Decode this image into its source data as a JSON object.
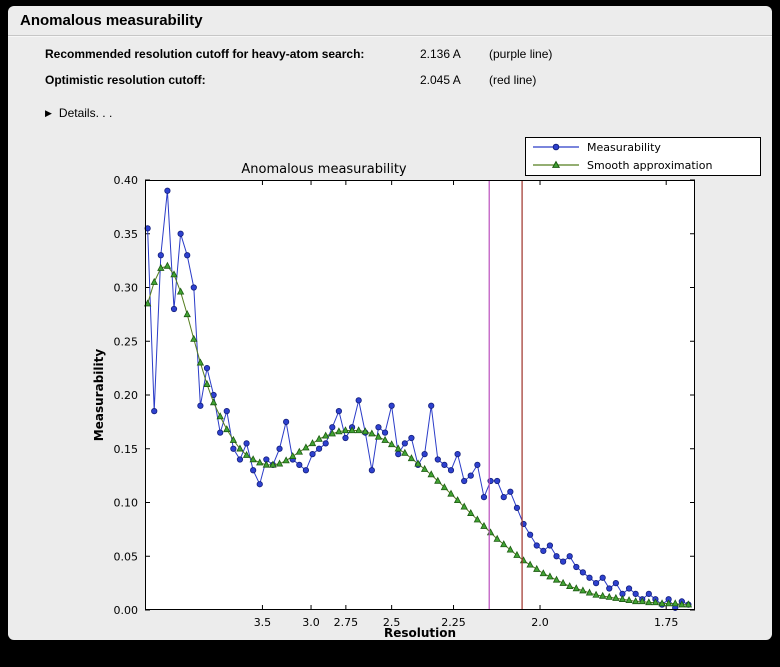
{
  "window": {
    "title": "Anomalous measurability"
  },
  "icons": {
    "details_disclosure": "▶"
  },
  "info": {
    "rows": [
      {
        "label": "Recommended resolution cutoff for heavy-atom search:",
        "value": "2.136 A",
        "note": "(purple line)"
      },
      {
        "label": "Optimistic resolution cutoff:",
        "value": "2.045 A",
        "note": "(red line)"
      }
    ],
    "details_label": "Details. . ."
  },
  "chart_data": {
    "type": "line",
    "title": "Anomalous measurability",
    "xlabel": "Resolution",
    "ylabel": "Measurability",
    "x_axis": {
      "transform": "1/d^2",
      "smin": 0.0104,
      "smax": 0.344,
      "xlim_d": [
        9.8,
        1.7
      ],
      "tick_d_values": [
        3.5,
        3.0,
        2.75,
        2.5,
        2.25,
        2.0,
        1.75
      ],
      "tick_labels": [
        "3.5",
        "3.0",
        "2.75",
        "2.5",
        "2.25",
        "2.0",
        "1.75"
      ]
    },
    "y_axis": {
      "min": 0.0,
      "max": 0.4,
      "ticks": [
        0.0,
        0.05,
        0.1,
        0.15,
        0.2,
        0.25,
        0.3,
        0.35,
        0.4
      ],
      "tick_labels": [
        "0.00",
        "0.05",
        "0.10",
        "0.15",
        "0.20",
        "0.25",
        "0.30",
        "0.35",
        "0.40"
      ]
    },
    "grid": false,
    "legend": {
      "position": "top-right",
      "entries": [
        {
          "label": "Measurability"
        },
        {
          "label": "Smooth approximation"
        }
      ]
    },
    "cutoff_lines": [
      {
        "name": "recommended-cutoff-purple",
        "d": 2.136,
        "color": "#bb4fbd"
      },
      {
        "name": "optimistic-cutoff-red",
        "d": 2.045,
        "color": "#9e3229"
      }
    ],
    "x_values_1_over_d2": [
      0.012,
      0.016,
      0.02,
      0.024,
      0.028,
      0.032,
      0.036,
      0.04,
      0.044,
      0.048,
      0.052,
      0.056,
      0.06,
      0.064,
      0.068,
      0.072,
      0.076,
      0.08,
      0.084,
      0.088,
      0.092,
      0.096,
      0.1,
      0.104,
      0.108,
      0.112,
      0.116,
      0.12,
      0.124,
      0.128,
      0.132,
      0.136,
      0.14,
      0.144,
      0.148,
      0.152,
      0.156,
      0.16,
      0.164,
      0.168,
      0.172,
      0.176,
      0.18,
      0.184,
      0.188,
      0.192,
      0.196,
      0.2,
      0.204,
      0.208,
      0.212,
      0.216,
      0.22,
      0.224,
      0.228,
      0.232,
      0.236,
      0.24,
      0.244,
      0.248,
      0.252,
      0.256,
      0.26,
      0.264,
      0.268,
      0.272,
      0.276,
      0.28,
      0.284,
      0.288,
      0.292,
      0.296,
      0.3,
      0.304,
      0.308,
      0.312,
      0.316,
      0.32,
      0.324,
      0.328,
      0.332,
      0.336,
      0.34
    ],
    "series": [
      {
        "name": "Measurability",
        "marker": "circle",
        "line_color": "#2b3cc8",
        "marker_fill": "#2e41cf",
        "marker_edge": "#14207e",
        "values": [
          0.355,
          0.185,
          0.33,
          0.39,
          0.28,
          0.35,
          0.33,
          0.3,
          0.19,
          0.225,
          0.2,
          0.165,
          0.185,
          0.15,
          0.14,
          0.155,
          0.13,
          0.117,
          0.14,
          0.135,
          0.15,
          0.175,
          0.14,
          0.135,
          0.13,
          0.145,
          0.15,
          0.155,
          0.17,
          0.185,
          0.16,
          0.17,
          0.195,
          0.165,
          0.13,
          0.17,
          0.165,
          0.19,
          0.145,
          0.155,
          0.16,
          0.135,
          0.145,
          0.19,
          0.14,
          0.135,
          0.13,
          0.145,
          0.12,
          0.125,
          0.135,
          0.105,
          0.12,
          0.12,
          0.105,
          0.11,
          0.095,
          0.08,
          0.07,
          0.06,
          0.055,
          0.06,
          0.05,
          0.045,
          0.05,
          0.04,
          0.035,
          0.03,
          0.025,
          0.03,
          0.02,
          0.025,
          0.015,
          0.02,
          0.015,
          0.01,
          0.015,
          0.01,
          0.005,
          0.01,
          0.002,
          0.008,
          0.005
        ]
      },
      {
        "name": "Smooth approximation",
        "marker": "triangle",
        "line_color": "#557d1f",
        "marker_fill": "#41a333",
        "marker_edge": "#1c5a12",
        "values": [
          0.285,
          0.305,
          0.318,
          0.32,
          0.312,
          0.296,
          0.275,
          0.252,
          0.23,
          0.21,
          0.193,
          0.18,
          0.168,
          0.158,
          0.15,
          0.144,
          0.14,
          0.137,
          0.135,
          0.135,
          0.136,
          0.139,
          0.143,
          0.147,
          0.151,
          0.155,
          0.159,
          0.162,
          0.164,
          0.166,
          0.167,
          0.167,
          0.167,
          0.166,
          0.164,
          0.161,
          0.158,
          0.154,
          0.15,
          0.146,
          0.141,
          0.136,
          0.131,
          0.126,
          0.12,
          0.114,
          0.108,
          0.102,
          0.096,
          0.09,
          0.084,
          0.078,
          0.072,
          0.066,
          0.061,
          0.056,
          0.051,
          0.046,
          0.042,
          0.038,
          0.034,
          0.031,
          0.028,
          0.025,
          0.022,
          0.02,
          0.018,
          0.016,
          0.014,
          0.013,
          0.012,
          0.011,
          0.01,
          0.009,
          0.008,
          0.008,
          0.007,
          0.007,
          0.006,
          0.006,
          0.006,
          0.005,
          0.005
        ]
      }
    ]
  }
}
